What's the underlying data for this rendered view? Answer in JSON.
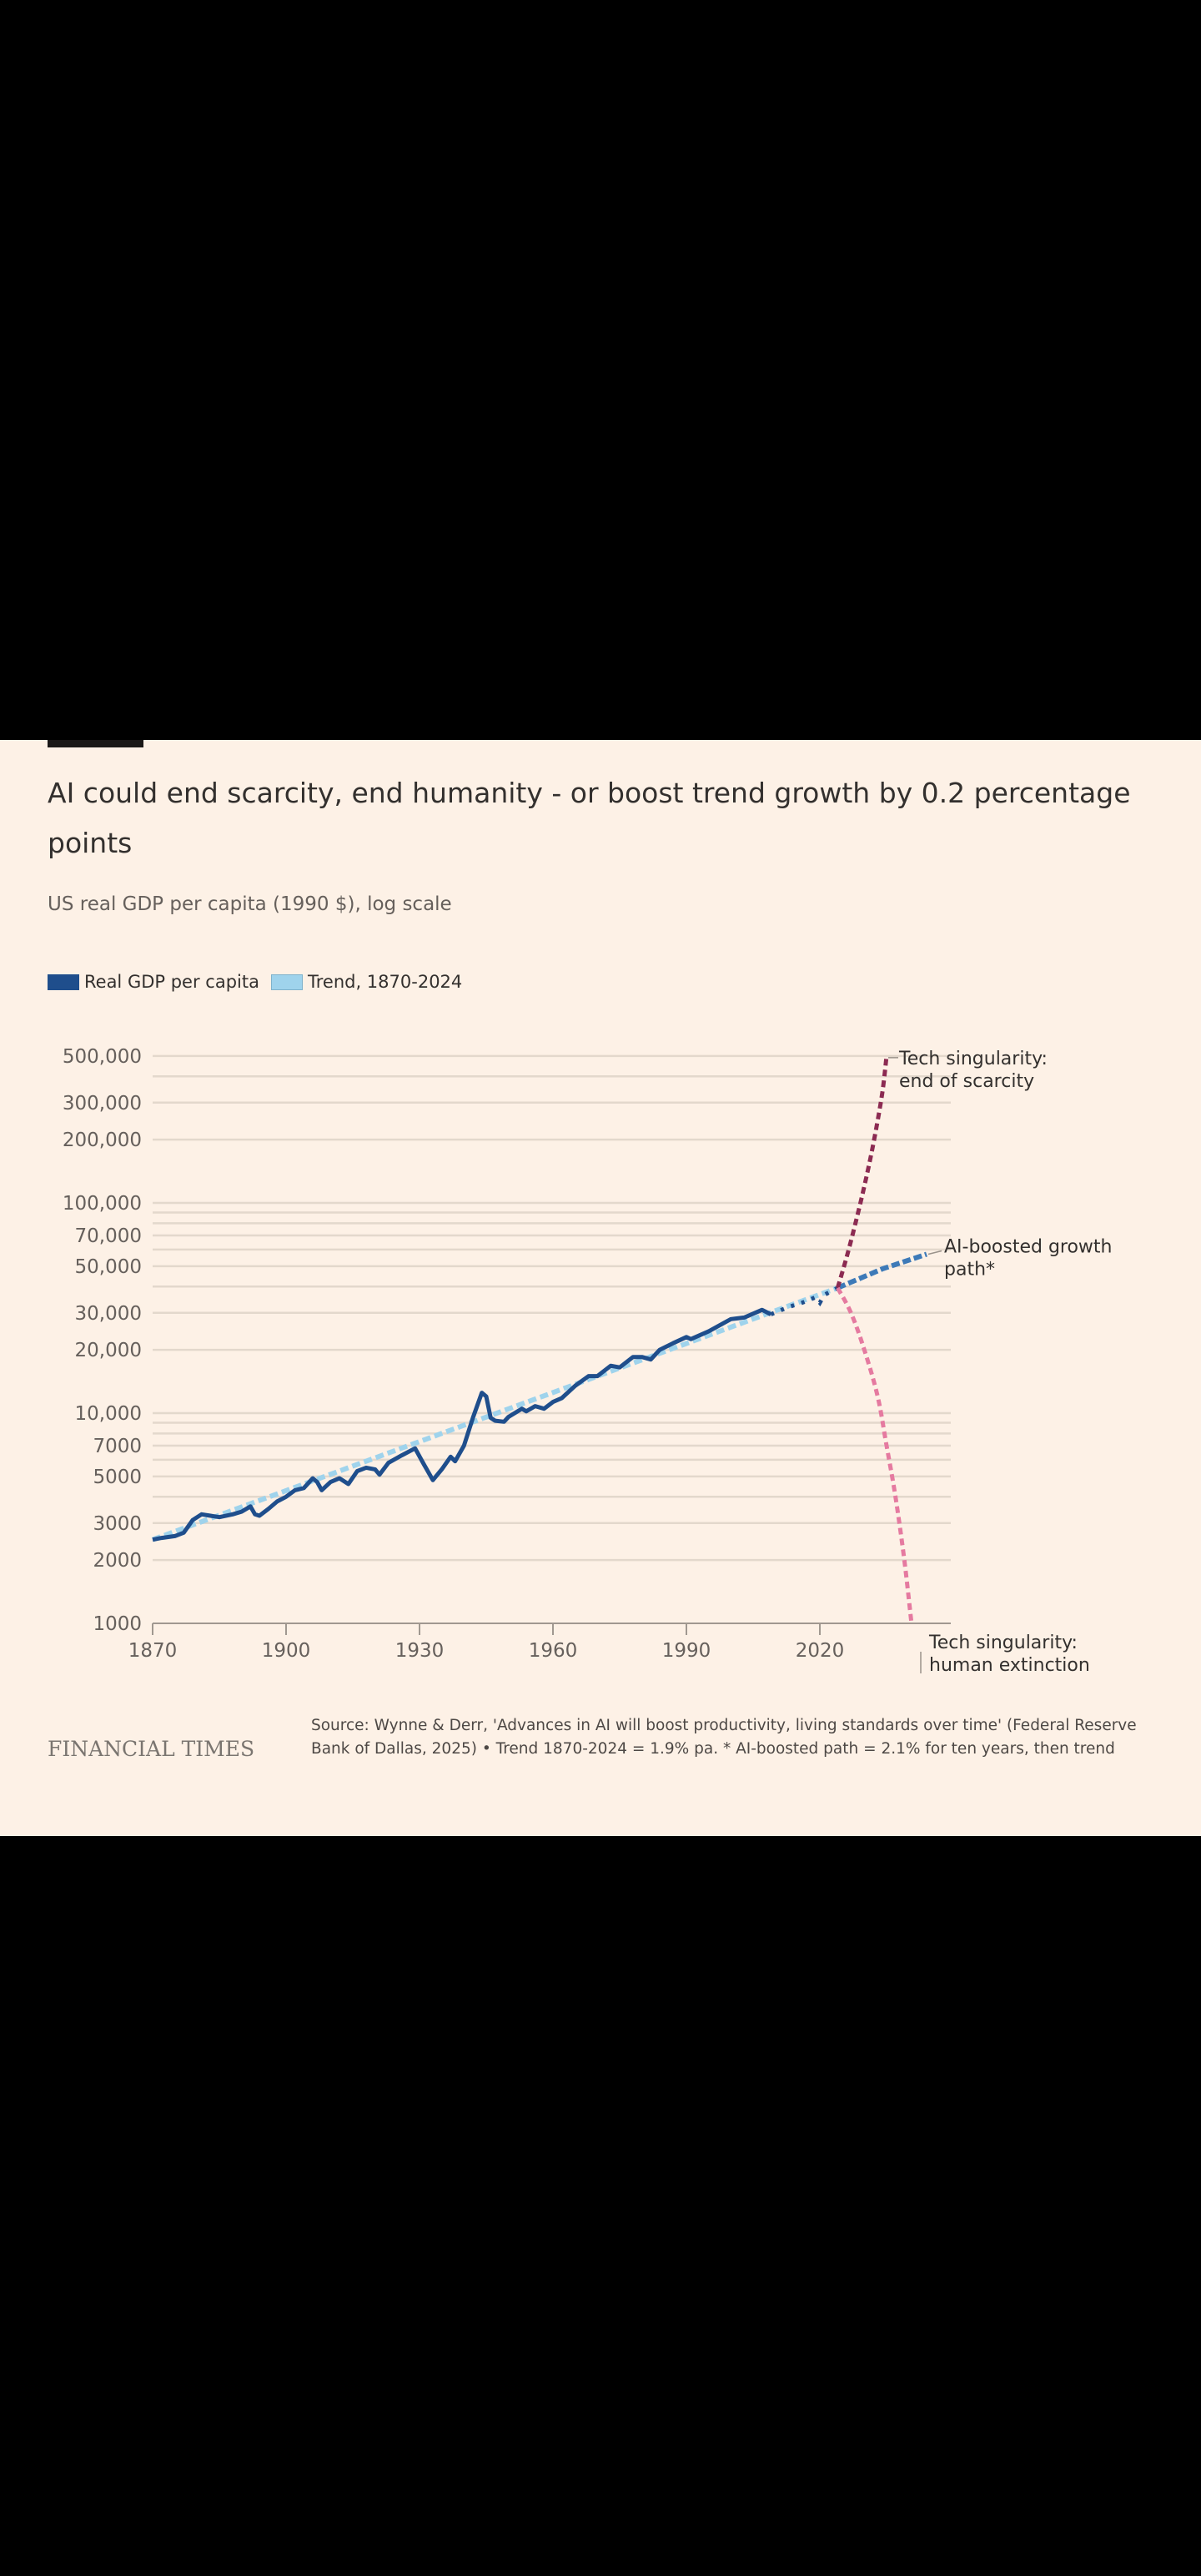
{
  "card": {
    "title": "AI could end scarcity, end humanity - or boost trend growth by 0.2 percentage points",
    "subtitle": "US real GDP per capita (1990 $), log scale",
    "legend": [
      {
        "label": "Real GDP per capita",
        "color": "#1f4e8c"
      },
      {
        "label": "Trend, 1870-2024",
        "color": "#9fd3ec"
      }
    ],
    "footer": {
      "logo": "FINANCIAL TIMES",
      "source": "Source: Wynne & Derr, 'Advances in AI will boost productivity, living standards over time' (Federal Reserve Bank of Dallas, 2025) • Trend 1870-2024 = 1.9% pa. * AI-boosted path = 2.1% for ten years, then trend"
    }
  },
  "colors": {
    "background": "#fdf1e6",
    "gdp": "#1f4e8c",
    "trend": "#9fd3ec",
    "ai_boosted": "#3d7ab8",
    "scarcity": "#8c2b52",
    "extinction": "#e57aa0",
    "grid": "#e3d8cc",
    "axis": "#a09890"
  },
  "chart_data": {
    "type": "line",
    "title": "AI could end scarcity, end humanity - or boost trend growth by 0.2 percentage points",
    "subtitle": "US real GDP per capita (1990 $), log scale",
    "xlabel": "",
    "ylabel": "US real GDP per capita (1990 $)",
    "yscale": "log",
    "xlim": [
      1870,
      2060
    ],
    "ylim": [
      1000,
      500000
    ],
    "x_ticks": [
      1870,
      1900,
      1930,
      1960,
      1990,
      2020
    ],
    "y_ticks": [
      {
        "value": 500000,
        "label": "500,000"
      },
      {
        "value": 400000,
        "label": ""
      },
      {
        "value": 300000,
        "label": "300,000"
      },
      {
        "value": 200000,
        "label": "200,000"
      },
      {
        "value": 100000,
        "label": "100,000"
      },
      {
        "value": 90000,
        "label": ""
      },
      {
        "value": 80000,
        "label": ""
      },
      {
        "value": 70000,
        "label": "70,000"
      },
      {
        "value": 60000,
        "label": ""
      },
      {
        "value": 50000,
        "label": "50,000"
      },
      {
        "value": 40000,
        "label": ""
      },
      {
        "value": 30000,
        "label": "30,000"
      },
      {
        "value": 20000,
        "label": "20,000"
      },
      {
        "value": 10000,
        "label": "10,000"
      },
      {
        "value": 9000,
        "label": ""
      },
      {
        "value": 8000,
        "label": ""
      },
      {
        "value": 7000,
        "label": "7000"
      },
      {
        "value": 6000,
        "label": ""
      },
      {
        "value": 5000,
        "label": "5000"
      },
      {
        "value": 4000,
        "label": ""
      },
      {
        "value": 3000,
        "label": "3000"
      },
      {
        "value": 2000,
        "label": "2000"
      },
      {
        "value": 1000,
        "label": "1000"
      }
    ],
    "legend_position": "top-left",
    "grid": true,
    "series": [
      {
        "name": "Real GDP per capita",
        "style": "solid",
        "x": [
          1870,
          1872,
          1875,
          1877,
          1879,
          1881,
          1883,
          1885,
          1888,
          1890,
          1892,
          1893,
          1894,
          1896,
          1898,
          1900,
          1902,
          1904,
          1906,
          1907,
          1908,
          1910,
          1912,
          1914,
          1916,
          1918,
          1920,
          1921,
          1923,
          1926,
          1929,
          1931,
          1933,
          1935,
          1937,
          1938,
          1940,
          1942,
          1944,
          1945,
          1946,
          1947,
          1949,
          1950,
          1953,
          1954,
          1956,
          1958,
          1960,
          1962,
          1965,
          1968,
          1970,
          1973,
          1975,
          1978,
          1980,
          1982,
          1984,
          1987,
          1990,
          1991,
          1995,
          2000,
          2003,
          2007,
          2009
        ],
        "values": [
          2500,
          2550,
          2600,
          2700,
          3100,
          3300,
          3250,
          3200,
          3300,
          3400,
          3600,
          3300,
          3250,
          3500,
          3800,
          4000,
          4300,
          4400,
          4900,
          4700,
          4300,
          4700,
          4900,
          4600,
          5300,
          5500,
          5400,
          5100,
          5800,
          6300,
          6800,
          5700,
          4800,
          5400,
          6200,
          5900,
          7000,
          9500,
          12500,
          12000,
          9500,
          9200,
          9100,
          9600,
          10500,
          10200,
          10800,
          10500,
          11300,
          11800,
          13500,
          15000,
          15000,
          16800,
          16500,
          18500,
          18500,
          18000,
          20000,
          21500,
          23000,
          22500,
          24500,
          28000,
          28500,
          31000,
          29500
        ]
      },
      {
        "name": "Real GDP per capita (recent, dotted)",
        "style": "dotted",
        "x": [
          2009,
          2013,
          2016,
          2019,
          2020,
          2021,
          2024
        ],
        "values": [
          29500,
          32000,
          33500,
          35500,
          33500,
          36500,
          39400
        ]
      },
      {
        "name": "Trend, 1870-2024",
        "style": "dashed",
        "x": [
          1870,
          2024
        ],
        "values": [
          2500,
          39400
        ]
      },
      {
        "name": "AI-boosted growth path*",
        "style": "dashed",
        "label": "AI-boosted growth path*",
        "x": [
          2024,
          2034,
          2044
        ],
        "values": [
          39400,
          48500,
          57000
        ]
      },
      {
        "name": "Tech singularity: end of scarcity",
        "style": "dashed",
        "label": "Tech singularity: end of scarcity",
        "x": [
          2024,
          2026,
          2028,
          2030,
          2032,
          2034,
          2035
        ],
        "values": [
          39400,
          55000,
          80000,
          120000,
          190000,
          330000,
          500000
        ]
      },
      {
        "name": "Tech singularity: human extinction",
        "style": "dashed",
        "label": "Tech singularity: human extinction",
        "x": [
          2024,
          2027,
          2030,
          2033,
          2035,
          2037,
          2039,
          2040.6
        ],
        "values": [
          39400,
          30000,
          20000,
          12000,
          7000,
          4000,
          2000,
          1000
        ]
      }
    ],
    "annotations": [
      {
        "text_lines": [
          "Tech singularity:",
          "end of scarcity"
        ],
        "anchor_series": "Tech singularity: end of scarcity"
      },
      {
        "text_lines": [
          "AI-boosted growth",
          "path*"
        ],
        "anchor_series": "AI-boosted growth path*"
      },
      {
        "text_lines": [
          "Tech singularity:",
          "human extinction"
        ],
        "anchor_series": "Tech singularity: human extinction"
      }
    ]
  }
}
